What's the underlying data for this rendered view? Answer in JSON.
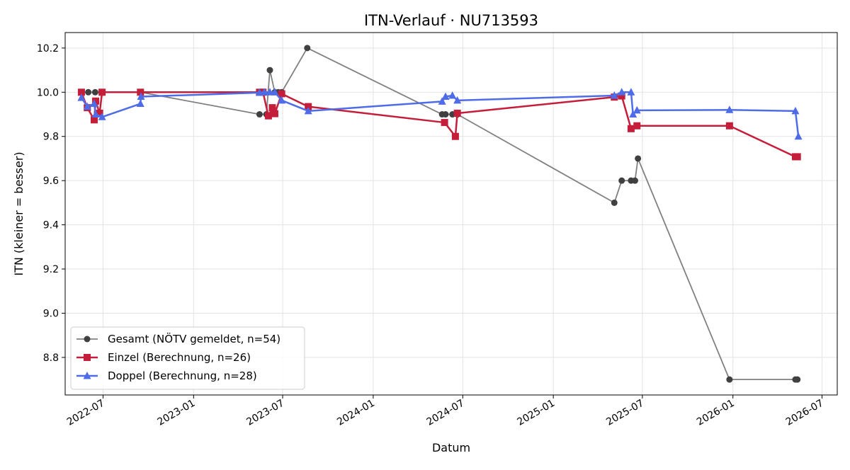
{
  "chart_data": {
    "type": "line",
    "title": "ITN-Verlauf · NU713593",
    "xlabel": "Datum",
    "ylabel": "ITN  (kleiner = besser)",
    "xlim": [
      "2022-04-15",
      "2026-08-01"
    ],
    "ylim": [
      8.63,
      10.27
    ],
    "grid": true,
    "legend_position": "lower-left",
    "x_ticks": [
      "2022-07",
      "2023-01",
      "2023-07",
      "2024-01",
      "2024-07",
      "2025-01",
      "2025-07",
      "2026-01",
      "2026-07"
    ],
    "y_ticks": [
      8.8,
      9.0,
      9.2,
      9.4,
      9.6,
      9.8,
      10.0,
      10.2
    ],
    "y_tick_labels": [
      "8.8",
      "9.0",
      "9.2",
      "9.4",
      "9.6",
      "9.8",
      "10.0",
      "10.2"
    ],
    "series": [
      {
        "name": "Gesamt (NÖTV gemeldet, n=54)",
        "color": "#555555",
        "marker": "circle",
        "points": [
          [
            "2022-05-18",
            10.0
          ],
          [
            "2022-06-01",
            10.0
          ],
          [
            "2022-06-15",
            10.0
          ],
          [
            "2022-06-28",
            10.0
          ],
          [
            "2022-09-15",
            10.0
          ],
          [
            "2023-05-15",
            9.9
          ],
          [
            "2023-05-29",
            9.9
          ],
          [
            "2023-06-05",
            10.1
          ],
          [
            "2023-06-15",
            10.0
          ],
          [
            "2023-06-22",
            10.0
          ],
          [
            "2023-06-29",
            10.0
          ],
          [
            "2023-08-20",
            10.2
          ],
          [
            "2024-05-20",
            9.9
          ],
          [
            "2024-05-27",
            9.9
          ],
          [
            "2024-06-10",
            9.9
          ],
          [
            "2024-06-20",
            9.9
          ],
          [
            "2025-05-05",
            9.5
          ],
          [
            "2025-05-20",
            9.6
          ],
          [
            "2025-06-08",
            9.6
          ],
          [
            "2025-06-16",
            9.6
          ],
          [
            "2025-06-22",
            9.7
          ],
          [
            "2025-12-25",
            8.7
          ],
          [
            "2026-05-08",
            8.7
          ],
          [
            "2026-05-12",
            8.7
          ]
        ]
      },
      {
        "name": "Einzel (Berechnung, n=26)",
        "color": "#c41e3a",
        "marker": "square",
        "points": [
          [
            "2022-05-18",
            10.0
          ],
          [
            "2022-05-30",
            9.93
          ],
          [
            "2022-06-13",
            9.875
          ],
          [
            "2022-06-16",
            9.96
          ],
          [
            "2022-06-24",
            9.905
          ],
          [
            "2022-06-29",
            10.0
          ],
          [
            "2022-09-15",
            10.0
          ],
          [
            "2023-05-15",
            10.0
          ],
          [
            "2023-05-22",
            10.0
          ],
          [
            "2023-06-02",
            9.893
          ],
          [
            "2023-06-10",
            9.93
          ],
          [
            "2023-06-15",
            9.903
          ],
          [
            "2023-06-29",
            9.993
          ],
          [
            "2023-08-22",
            9.935
          ],
          [
            "2024-05-25",
            9.863
          ],
          [
            "2024-06-16",
            9.8
          ],
          [
            "2024-06-20",
            9.905
          ],
          [
            "2025-05-05",
            9.978
          ],
          [
            "2025-05-20",
            9.983
          ],
          [
            "2025-06-08",
            9.835
          ],
          [
            "2025-06-20",
            9.848
          ],
          [
            "2025-12-25",
            9.848
          ],
          [
            "2026-05-08",
            9.708
          ],
          [
            "2026-05-12",
            9.708
          ]
        ]
      },
      {
        "name": "Doppel (Berechnung, n=28)",
        "color": "#4f6ce8",
        "marker": "triangle",
        "points": [
          [
            "2022-05-18",
            9.975
          ],
          [
            "2022-05-30",
            9.935
          ],
          [
            "2022-06-13",
            9.948
          ],
          [
            "2022-06-16",
            9.9
          ],
          [
            "2022-06-29",
            9.888
          ],
          [
            "2022-09-15",
            9.948
          ],
          [
            "2022-09-16",
            9.98
          ],
          [
            "2023-05-15",
            9.998
          ],
          [
            "2023-05-25",
            10.0
          ],
          [
            "2023-06-05",
            10.0
          ],
          [
            "2023-06-15",
            10.0
          ],
          [
            "2023-06-29",
            9.963
          ],
          [
            "2023-08-22",
            9.915
          ],
          [
            "2024-05-20",
            9.958
          ],
          [
            "2024-05-27",
            9.98
          ],
          [
            "2024-06-10",
            9.985
          ],
          [
            "2024-06-20",
            9.963
          ],
          [
            "2025-05-05",
            9.985
          ],
          [
            "2025-05-20",
            10.0
          ],
          [
            "2025-06-08",
            10.0
          ],
          [
            "2025-06-12",
            9.9
          ],
          [
            "2025-06-20",
            9.918
          ],
          [
            "2025-12-25",
            9.92
          ],
          [
            "2026-05-08",
            9.915
          ],
          [
            "2026-05-14",
            9.8
          ]
        ]
      }
    ]
  }
}
